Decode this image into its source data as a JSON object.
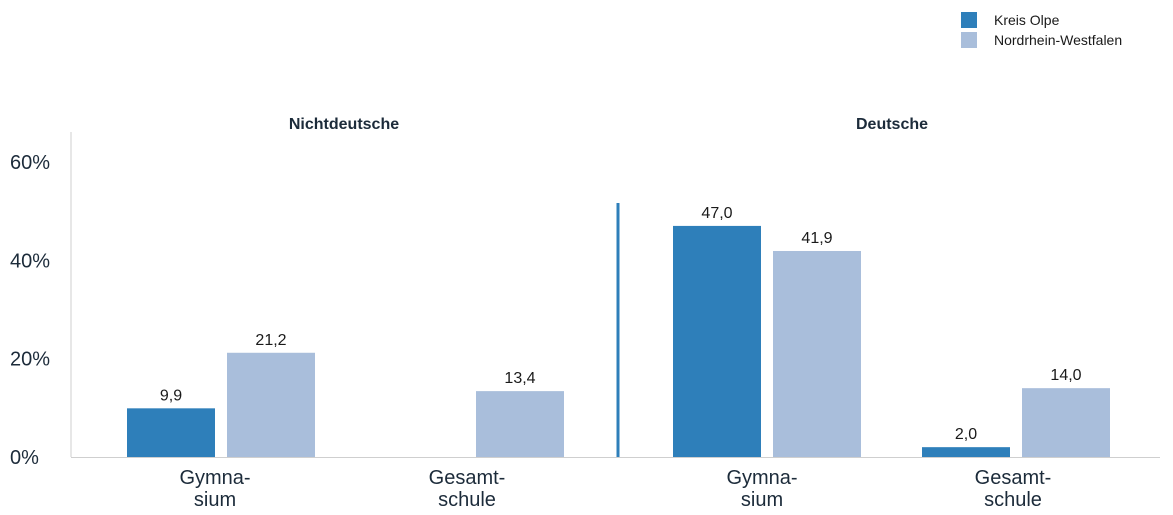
{
  "chart_data": {
    "type": "bar",
    "groups": [
      {
        "title": "Nichtdeutsche",
        "categories": [
          "Gymna-\nsium",
          "Gesamt-\nschule"
        ],
        "series": [
          {
            "name": "Kreis Olpe",
            "values": [
              9.9,
              null
            ]
          },
          {
            "name": "Nordrhein-Westfalen",
            "values": [
              21.2,
              13.4
            ]
          }
        ],
        "data_labels": [
          [
            "9,9",
            ""
          ],
          [
            "21,2",
            "13,4"
          ]
        ]
      },
      {
        "title": "Deutsche",
        "categories": [
          "Gymna-\nsium",
          "Gesamt-\nschule"
        ],
        "series": [
          {
            "name": "Kreis Olpe",
            "values": [
              47.0,
              2.0
            ]
          },
          {
            "name": "Nordrhein-Westfalen",
            "values": [
              41.9,
              14.0
            ]
          }
        ],
        "data_labels": [
          [
            "47,0",
            "2,0"
          ],
          [
            "41,9",
            "14,0"
          ]
        ]
      }
    ],
    "y_ticks": [
      {
        "value": 0,
        "label": "0%"
      },
      {
        "value": 20,
        "label": "20%"
      },
      {
        "value": 40,
        "label": "40%"
      },
      {
        "value": 60,
        "label": "60%"
      }
    ],
    "ylim": [
      0,
      60
    ],
    "grid": false,
    "legend_position": "top-right",
    "colors": {
      "Kreis Olpe": "#2e7fba",
      "Nordrhein-Westfalen": "#a9bedb",
      "divider": "#2e7fba",
      "axis": "#cfcfcf"
    }
  },
  "legend": [
    {
      "label": "Kreis Olpe",
      "color": "#2e7fba"
    },
    {
      "label": "Nordrhein-Westfalen",
      "color": "#a9bedb"
    }
  ]
}
